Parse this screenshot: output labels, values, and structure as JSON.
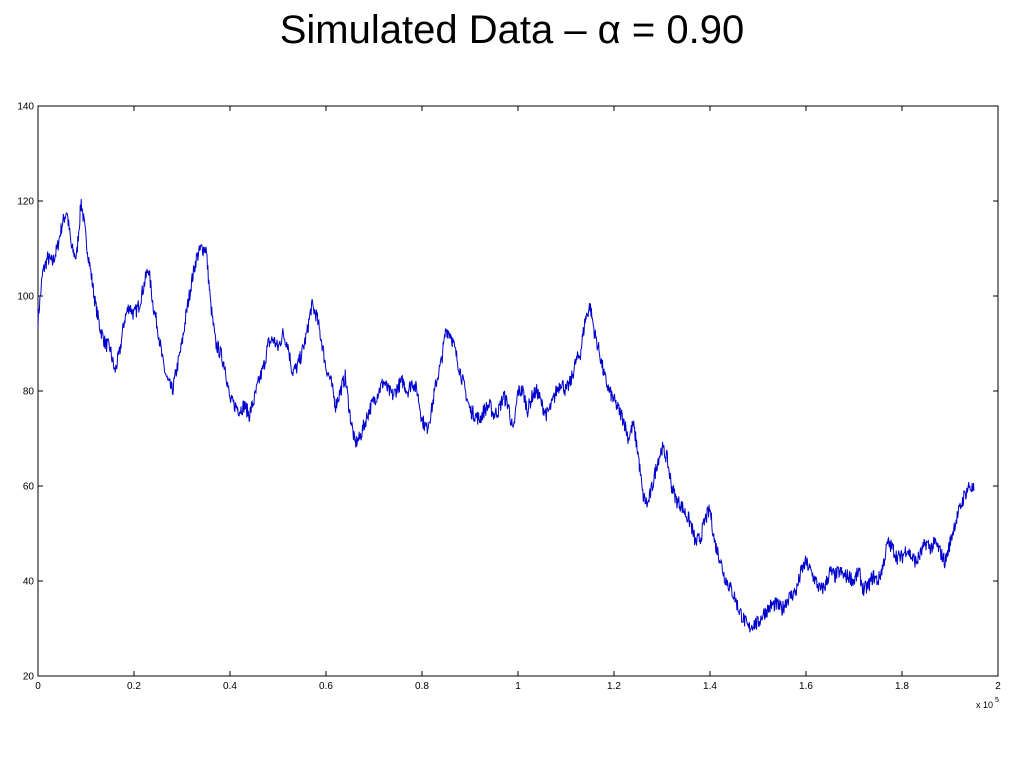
{
  "title": "Simulated Data – α = 0.90",
  "chart_data": {
    "type": "line",
    "title": "Simulated Data – α = 0.90",
    "xlabel": "",
    "ylabel": "",
    "xlim": [
      0,
      2
    ],
    "ylim": [
      20,
      140
    ],
    "x_multiplier_label": "x 10",
    "x_multiplier_exponent": "5",
    "x_ticks": [
      "0",
      "0.2",
      "0.4",
      "0.6",
      "0.8",
      "1",
      "1.2",
      "1.4",
      "1.6",
      "1.8",
      "2"
    ],
    "y_ticks": [
      "20",
      "40",
      "60",
      "80",
      "100",
      "120",
      "140"
    ],
    "grid": false,
    "series_color": "#0000cc",
    "series": [
      {
        "x": [
          0,
          0.01,
          0.02,
          0.03,
          0.04,
          0.05,
          0.06,
          0.07,
          0.08,
          0.09,
          0.1,
          0.11,
          0.12,
          0.13,
          0.14,
          0.15,
          0.16,
          0.17,
          0.18,
          0.19,
          0.2,
          0.21,
          0.22,
          0.23,
          0.24,
          0.25,
          0.26,
          0.27,
          0.28,
          0.29,
          0.3,
          0.31,
          0.32,
          0.33,
          0.34,
          0.35,
          0.36,
          0.37,
          0.38,
          0.39,
          0.4,
          0.41,
          0.42,
          0.43,
          0.44,
          0.45,
          0.46,
          0.47,
          0.48,
          0.49,
          0.5,
          0.51,
          0.52,
          0.53,
          0.54,
          0.55,
          0.56,
          0.57,
          0.58,
          0.59,
          0.6,
          0.61,
          0.62,
          0.63,
          0.64,
          0.65,
          0.66,
          0.67,
          0.68,
          0.69,
          0.7,
          0.71,
          0.72,
          0.73,
          0.74,
          0.75,
          0.76,
          0.77,
          0.78,
          0.79,
          0.8,
          0.81,
          0.82,
          0.83,
          0.84,
          0.85,
          0.86,
          0.87,
          0.88,
          0.89,
          0.9,
          0.91,
          0.92,
          0.93,
          0.94,
          0.95,
          0.96,
          0.97,
          0.98,
          0.99,
          1.0,
          1.01,
          1.02,
          1.03,
          1.04,
          1.05,
          1.06,
          1.07,
          1.08,
          1.09,
          1.1,
          1.11,
          1.12,
          1.13,
          1.14,
          1.15,
          1.16,
          1.17,
          1.18,
          1.19,
          1.2,
          1.21,
          1.22,
          1.23,
          1.24,
          1.25,
          1.26,
          1.27,
          1.28,
          1.29,
          1.3,
          1.31,
          1.32,
          1.33,
          1.34,
          1.35,
          1.36,
          1.37,
          1.38,
          1.39,
          1.4,
          1.41,
          1.42,
          1.43,
          1.44,
          1.45,
          1.46,
          1.47,
          1.48,
          1.49,
          1.5,
          1.51,
          1.52,
          1.53,
          1.54,
          1.55,
          1.56,
          1.57,
          1.58,
          1.59,
          1.6,
          1.61,
          1.62,
          1.63,
          1.64,
          1.65,
          1.66,
          1.67,
          1.68,
          1.69,
          1.7,
          1.71,
          1.72,
          1.73,
          1.74,
          1.75,
          1.76,
          1.77,
          1.78,
          1.79,
          1.8,
          1.81,
          1.82,
          1.83,
          1.84,
          1.85,
          1.86,
          1.87,
          1.88,
          1.89,
          1.9,
          1.91,
          1.92,
          1.93,
          1.94,
          1.95
        ],
        "y": [
          95,
          105,
          108,
          107,
          110,
          115,
          118,
          110,
          108,
          120,
          112,
          105,
          98,
          93,
          90,
          89,
          84,
          88,
          95,
          98,
          96,
          98,
          102,
          106,
          98,
          93,
          86,
          82,
          80,
          85,
          90,
          97,
          103,
          108,
          110,
          110,
          98,
          90,
          88,
          85,
          78,
          77,
          76,
          77,
          75,
          78,
          82,
          85,
          90,
          91,
          89,
          92,
          90,
          84,
          85,
          88,
          92,
          98,
          96,
          91,
          85,
          82,
          77,
          80,
          83,
          75,
          69,
          70,
          73,
          76,
          78,
          80,
          82,
          80,
          79,
          81,
          82,
          80,
          82,
          80,
          74,
          72,
          76,
          82,
          86,
          93,
          92,
          88,
          84,
          80,
          76,
          75,
          74,
          76,
          77,
          75,
          76,
          79,
          77,
          71,
          80,
          80,
          76,
          79,
          80,
          77,
          75,
          77,
          80,
          82,
          80,
          82,
          86,
          88,
          95,
          98,
          92,
          88,
          83,
          80,
          78,
          76,
          74,
          70,
          73,
          67,
          58,
          56,
          60,
          65,
          68,
          66,
          60,
          57,
          56,
          54,
          52,
          48,
          49,
          53,
          55,
          48,
          45,
          41,
          39,
          37,
          34,
          32,
          30,
          31,
          31,
          33,
          34,
          35,
          35,
          34,
          36,
          37,
          38,
          42,
          44,
          42,
          40,
          38,
          39,
          42,
          41,
          42,
          41,
          41,
          40,
          42,
          38,
          39,
          41,
          40,
          43,
          48,
          47,
          45,
          45,
          47,
          45,
          44,
          46,
          48,
          47,
          48,
          46,
          44,
          48,
          52,
          55,
          58,
          60,
          59
        ]
      }
    ]
  }
}
